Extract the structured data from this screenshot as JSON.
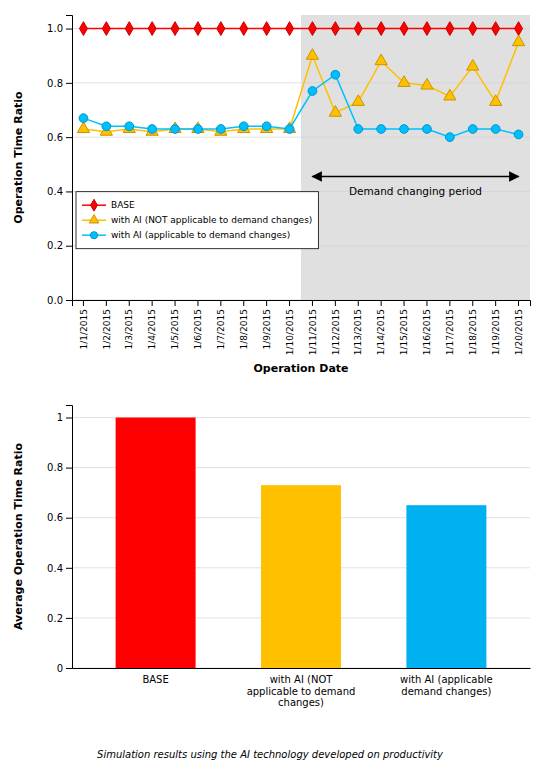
{
  "chart_data": [
    {
      "type": "line",
      "x_label": "Operation Date",
      "y_label": "Operation Time Ratio",
      "categories": [
        "1/1/2015",
        "1/2/2015",
        "1/3/2015",
        "1/4/2015",
        "1/5/2015",
        "1/6/2015",
        "1/7/2015",
        "1/8/2015",
        "1/9/2015",
        "1/10/2015",
        "1/11/2015",
        "1/12/2015",
        "1/13/2015",
        "1/14/2015",
        "1/15/2015",
        "1/16/2015",
        "1/17/2015",
        "1/18/2015",
        "1/19/2015",
        "1/20/2015"
      ],
      "series": [
        {
          "name": "BASE",
          "color": "#ff0000",
          "marker": "diamond",
          "values": [
            1,
            1,
            1,
            1,
            1,
            1,
            1,
            1,
            1,
            1,
            1,
            1,
            1,
            1,
            1,
            1,
            1,
            1,
            1,
            1
          ]
        },
        {
          "name": "with AI (NOT applicable to demand changes)",
          "color": "#ffc000",
          "marker": "triangle",
          "values": [
            0.63,
            0.62,
            0.63,
            0.62,
            0.63,
            0.63,
            0.62,
            0.63,
            0.63,
            0.63,
            0.9,
            0.69,
            0.73,
            0.88,
            0.8,
            0.79,
            0.75,
            0.86,
            0.73,
            0.95
          ]
        },
        {
          "name": "with AI (applicable to demand changes)",
          "color": "#00bfff",
          "marker": "circle",
          "values": [
            0.67,
            0.64,
            0.64,
            0.63,
            0.63,
            0.63,
            0.63,
            0.64,
            0.64,
            0.63,
            0.77,
            0.83,
            0.63,
            0.63,
            0.63,
            0.63,
            0.6,
            0.63,
            0.63,
            0.61
          ]
        }
      ],
      "ylim": [
        0,
        1.05
      ],
      "yticks": [
        {
          "value": 0,
          "label": "0.0"
        },
        0.2,
        0.4,
        0.6,
        0.8,
        {
          "value": 1,
          "label": "1.0"
        }
      ],
      "grid": true,
      "legend": "lower left",
      "annotations": [
        {
          "text": "Demand changing period",
          "from": "1/11/2015",
          "to": "1/20/2015"
        }
      ]
    },
    {
      "type": "bar",
      "y_label": "Average Operation Time Ratio",
      "categories": [
        "BASE",
        "with AI (NOT\napplicable to demand\nchanges)",
        "with AI (applicable\ndemand changes)"
      ],
      "values": [
        1.0,
        0.73,
        0.65
      ],
      "colors": [
        "#ff0000",
        "#ffc000",
        "#00b0f0"
      ],
      "ylim": [
        0,
        1.05
      ],
      "yticks": [
        0,
        0.2,
        0.4,
        0.6,
        0.8,
        1
      ],
      "grid": true,
      "annotations": [
        {
          "text": "Simulation results using the AI technology developed on productivity"
        }
      ]
    }
  ]
}
